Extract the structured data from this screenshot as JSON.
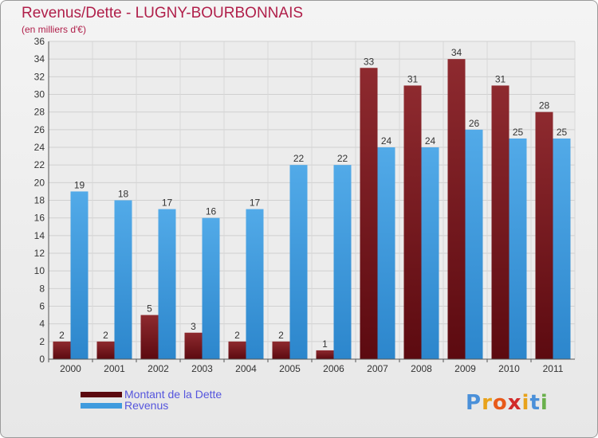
{
  "title": "Revenus/Dette - LUGNY-BOURBONNAIS",
  "subtitle": "(en milliers d'€)",
  "colors": {
    "dette": "#7a1c20",
    "revenus": "#3f9bde",
    "title": "#b01f4a",
    "legend_text": "#5555dd"
  },
  "legend": {
    "dette_label": "Montant de la Dette",
    "revenus_label": "Revenus"
  },
  "logo": {
    "text": "Proxiti"
  },
  "chart_data": {
    "type": "bar",
    "title": "Revenus/Dette - LUGNY-BOURBONNAIS",
    "subtitle": "(en milliers d'€)",
    "xlabel": "",
    "ylabel": "",
    "ylim": [
      0,
      36
    ],
    "y_ticks": [
      0,
      2,
      4,
      6,
      8,
      10,
      12,
      14,
      16,
      18,
      20,
      22,
      24,
      26,
      28,
      30,
      32,
      34,
      36
    ],
    "grid": true,
    "legend_position": "bottom-left",
    "categories": [
      "2000",
      "2001",
      "2002",
      "2003",
      "2004",
      "2005",
      "2006",
      "2007",
      "2008",
      "2009",
      "2010",
      "2011"
    ],
    "series": [
      {
        "name": "Montant de la Dette",
        "color": "#7a1c20",
        "values": [
          2,
          2,
          5,
          3,
          2,
          2,
          1,
          33,
          31,
          34,
          31,
          28
        ]
      },
      {
        "name": "Revenus",
        "color": "#3f9bde",
        "values": [
          19,
          18,
          17,
          16,
          17,
          22,
          22,
          24,
          24,
          26,
          25,
          25
        ]
      }
    ]
  }
}
